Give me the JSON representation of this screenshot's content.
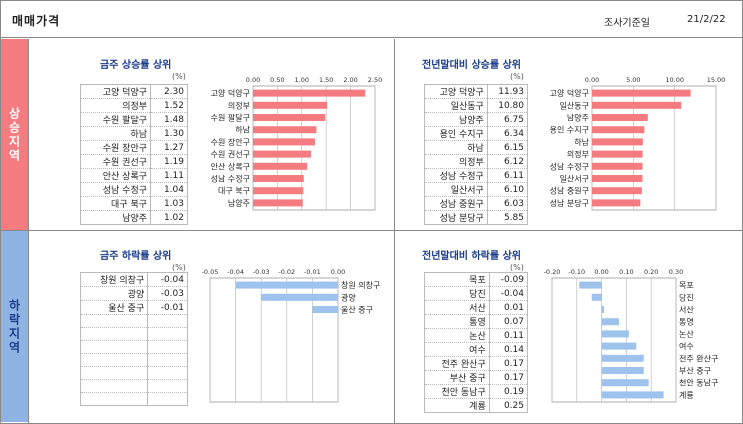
{
  "header": {
    "title": "매매가격",
    "survey_label": "조사기준일",
    "survey_date": "21/2/22"
  },
  "sections": {
    "up": "상승지역",
    "down": "하락지역"
  },
  "panels": {
    "up_weekly": {
      "title": "금주 상승률 상위",
      "unit": "(%)"
    },
    "up_yearly": {
      "title": "전년말대비 상승률 상위",
      "unit": "(%)"
    },
    "down_weekly": {
      "title": "금주 하락률 상위",
      "unit": "(%)"
    },
    "down_yearly": {
      "title": "전년말대비 하락률 상위",
      "unit": "(%)"
    }
  },
  "chart_data": [
    {
      "id": "up_weekly",
      "type": "bar",
      "orientation": "horizontal",
      "categories": [
        "고양 덕양구",
        "의정부",
        "수원 팔달구",
        "하남",
        "수원 장안구",
        "수원 권선구",
        "안산 상록구",
        "성남 수정구",
        "대구 북구",
        "남양주"
      ],
      "values": [
        2.3,
        1.52,
        1.48,
        1.3,
        1.27,
        1.19,
        1.11,
        1.04,
        1.03,
        1.02
      ],
      "value_labels": [
        "2.30",
        "1.52",
        "1.48",
        "1.30",
        "1.27",
        "1.19",
        "1.11",
        "1.04",
        "1.03",
        "1.02"
      ],
      "xlim": [
        0,
        2.5
      ],
      "ticks": [
        0,
        0.5,
        1.0,
        1.5,
        2.0,
        2.5
      ],
      "tick_labels": [
        "0.00",
        "0.50",
        "1.00",
        "1.50",
        "2.00",
        "2.50"
      ],
      "color": "#f47c80"
    },
    {
      "id": "up_yearly",
      "type": "bar",
      "orientation": "horizontal",
      "categories": [
        "고양 덕양구",
        "일산동구",
        "남양주",
        "용인 수지구",
        "하남",
        "의정부",
        "성남 수정구",
        "일산서구",
        "성남 중원구",
        "성남 분당구"
      ],
      "values": [
        11.93,
        10.8,
        6.75,
        6.34,
        6.15,
        6.12,
        6.11,
        6.1,
        6.03,
        5.85
      ],
      "value_labels": [
        "11.93",
        "10.80",
        "6.75",
        "6.34",
        "6.15",
        "6.12",
        "6.11",
        "6.10",
        "6.03",
        "5.85"
      ],
      "xlim": [
        0,
        15
      ],
      "ticks": [
        0,
        5,
        10,
        15
      ],
      "tick_labels": [
        "0.00",
        "5.00",
        "10.00",
        "15.00"
      ],
      "color": "#f47c80"
    },
    {
      "id": "down_weekly",
      "type": "bar",
      "orientation": "horizontal",
      "categories": [
        "창원 의창구",
        "광양",
        "울산 중구"
      ],
      "values": [
        -0.04,
        -0.03,
        -0.01
      ],
      "value_labels": [
        "-0.04",
        "-0.03",
        "-0.01"
      ],
      "xlim": [
        -0.05,
        0
      ],
      "ticks": [
        -0.05,
        -0.04,
        -0.03,
        -0.02,
        -0.01,
        0
      ],
      "tick_labels": [
        "-0.05",
        "-0.04",
        "-0.03",
        "-0.02",
        "-0.01",
        "0.00"
      ],
      "color": "#9dc3ec"
    },
    {
      "id": "down_yearly",
      "type": "bar",
      "orientation": "horizontal",
      "categories": [
        "목포",
        "당진",
        "서산",
        "통영",
        "논산",
        "여수",
        "전주 완산구",
        "부산 중구",
        "천안 동남구",
        "계룡"
      ],
      "values": [
        -0.09,
        -0.04,
        0.01,
        0.07,
        0.11,
        0.14,
        0.17,
        0.17,
        0.19,
        0.25
      ],
      "value_labels": [
        "-0.09",
        "-0.04",
        "0.01",
        "0.07",
        "0.11",
        "0.14",
        "0.17",
        "0.17",
        "0.19",
        "0.25"
      ],
      "xlim": [
        -0.2,
        0.3
      ],
      "ticks": [
        -0.2,
        -0.1,
        0,
        0.1,
        0.2,
        0.3
      ],
      "tick_labels": [
        "-0.20",
        "-0.10",
        "0.00",
        "0.10",
        "0.20",
        "0.30"
      ],
      "color": "#9dc3ec"
    }
  ]
}
